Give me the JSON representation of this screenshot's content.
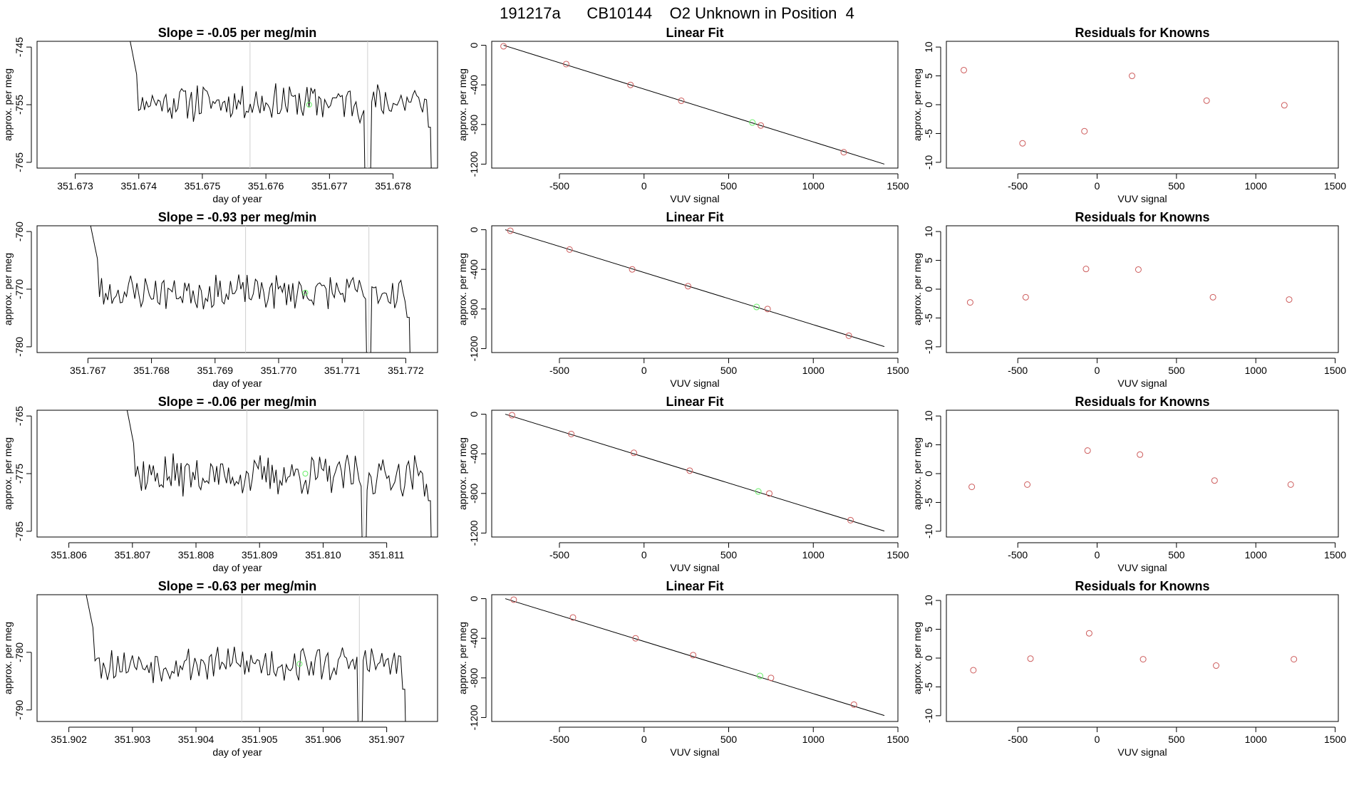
{
  "page_title": "191217a      CB10144    O2 Unknown in Position  4",
  "colors": {
    "point": "#cd5c5c",
    "highlight": "#66ee66",
    "line": "#000000",
    "vline": "#cfcfcf"
  },
  "chart_data": [
    {
      "type": "line",
      "row": 0,
      "col": 0,
      "title": "Slope =  -0.05  per meg/min",
      "xlabel": "day of year",
      "ylabel": "approx. per meg",
      "xlim": [
        351.6724,
        351.6787
      ],
      "ylim": [
        -766,
        -744
      ],
      "xticks": [
        351.673,
        351.674,
        351.675,
        351.676,
        351.677,
        351.678
      ],
      "xticklabels": [
        "351.673",
        "351.674",
        "351.675",
        "351.676",
        "351.677",
        "351.678"
      ],
      "yticks": [
        -745,
        -755,
        -765
      ],
      "yticklabels": [
        "-745",
        "-755",
        "-765"
      ],
      "vlines": [
        351.67575,
        351.6776
      ],
      "highlight": {
        "x": 351.67668,
        "y": -755.0
      },
      "trace": {
        "x_start": 351.67375,
        "x_end": 351.67865,
        "n": 160,
        "mean": -754.5,
        "amp": 2.8,
        "seed": 11
      }
    },
    {
      "type": "scatter",
      "row": 0,
      "col": 1,
      "title": "Linear Fit",
      "xlabel": "VUV signal",
      "ylabel": "approx. per meg",
      "xlim": [
        -900,
        1500
      ],
      "ylim": [
        -1240,
        40
      ],
      "xticks": [
        -500,
        0,
        500,
        1000,
        1500
      ],
      "xticklabels": [
        "-500",
        "0",
        "500",
        "1000",
        "1500"
      ],
      "yticks": [
        0,
        -400,
        -800,
        -1200
      ],
      "yticklabels": [
        "0",
        "-400",
        "-800",
        "-1200"
      ],
      "points": [
        [
          -830,
          -10
        ],
        [
          -460,
          -190
        ],
        [
          -80,
          -400
        ],
        [
          220,
          -560
        ],
        [
          690,
          -810
        ],
        [
          1180,
          -1080
        ]
      ],
      "highlight": [
        640,
        -780
      ],
      "fit_line": [
        [
          -830,
          0
        ],
        [
          1420,
          -1200
        ]
      ]
    },
    {
      "type": "scatter",
      "row": 0,
      "col": 2,
      "title": "Residuals for Knowns",
      "xlabel": "VUV signal",
      "ylabel": "approx. per meg",
      "xlim": [
        -950,
        1520
      ],
      "ylim": [
        -11,
        11
      ],
      "xticks": [
        -500,
        0,
        500,
        1000,
        1500
      ],
      "xticklabels": [
        "-500",
        "0",
        "500",
        "1000",
        "1500"
      ],
      "yticks": [
        10,
        5,
        0,
        -5,
        -10
      ],
      "yticklabels": [
        "10",
        "5",
        "0",
        "-5",
        "-10"
      ],
      "points": [
        [
          -840,
          6.0
        ],
        [
          -470,
          -6.7
        ],
        [
          -80,
          -4.6
        ],
        [
          220,
          5.0
        ],
        [
          690,
          0.7
        ],
        [
          1180,
          -0.1
        ]
      ]
    },
    {
      "type": "line",
      "row": 1,
      "col": 0,
      "title": "Slope =  -0.93  per meg/min",
      "xlabel": "day of year",
      "ylabel": "approx. per meg",
      "xlim": [
        351.7662,
        351.7725
      ],
      "ylim": [
        -781,
        -759
      ],
      "xticks": [
        351.767,
        351.768,
        351.769,
        351.77,
        351.771,
        351.772
      ],
      "xticklabels": [
        "351.767",
        "351.768",
        "351.769",
        "351.770",
        "351.771",
        "351.772"
      ],
      "yticks": [
        -760,
        -770,
        -780
      ],
      "yticklabels": [
        "-760",
        "-770",
        "-780"
      ],
      "vlines": [
        351.76948,
        351.77142
      ],
      "highlight": {
        "x": 351.77042,
        "y": -770.6
      },
      "trace": {
        "x_start": 351.76692,
        "x_end": 351.77212,
        "n": 160,
        "mean": -770.5,
        "amp": 2.6,
        "seed": 23
      }
    },
    {
      "type": "scatter",
      "row": 1,
      "col": 1,
      "title": "Linear Fit",
      "xlabel": "VUV signal",
      "ylabel": "approx. per meg",
      "xlim": [
        -900,
        1500
      ],
      "ylim": [
        -1240,
        40
      ],
      "xticks": [
        -500,
        0,
        500,
        1000,
        1500
      ],
      "xticklabels": [
        "-500",
        "0",
        "500",
        "1000",
        "1500"
      ],
      "yticks": [
        0,
        -400,
        -800,
        -1200
      ],
      "yticklabels": [
        "0",
        "-400",
        "-800",
        "-1200"
      ],
      "points": [
        [
          -790,
          -10
        ],
        [
          -440,
          -200
        ],
        [
          -70,
          -400
        ],
        [
          260,
          -570
        ],
        [
          730,
          -800
        ],
        [
          1210,
          -1070
        ]
      ],
      "highlight": [
        665,
        -780
      ],
      "fit_line": [
        [
          -820,
          0
        ],
        [
          1420,
          -1180
        ]
      ]
    },
    {
      "type": "scatter",
      "row": 1,
      "col": 2,
      "title": "Residuals for Knowns",
      "xlabel": "VUV signal",
      "ylabel": "approx. per meg",
      "xlim": [
        -950,
        1520
      ],
      "ylim": [
        -11,
        11
      ],
      "xticks": [
        -500,
        0,
        500,
        1000,
        1500
      ],
      "xticklabels": [
        "-500",
        "0",
        "500",
        "1000",
        "1500"
      ],
      "yticks": [
        10,
        5,
        0,
        -5,
        -10
      ],
      "yticklabels": [
        "10",
        "5",
        "0",
        "-5",
        "-10"
      ],
      "points": [
        [
          -800,
          -2.3
        ],
        [
          -450,
          -1.4
        ],
        [
          -70,
          3.5
        ],
        [
          260,
          3.4
        ],
        [
          730,
          -1.4
        ],
        [
          1210,
          -1.8
        ]
      ]
    },
    {
      "type": "line",
      "row": 2,
      "col": 0,
      "title": "Slope =  -0.06  per meg/min",
      "xlabel": "day of year",
      "ylabel": "approx. per meg",
      "xlim": [
        351.8055,
        351.8118
      ],
      "ylim": [
        -786,
        -764
      ],
      "xticks": [
        351.806,
        351.807,
        351.808,
        351.809,
        351.81,
        351.811
      ],
      "xticklabels": [
        "351.806",
        "351.807",
        "351.808",
        "351.809",
        "351.810",
        "351.811"
      ],
      "yticks": [
        -765,
        -775,
        -785
      ],
      "yticklabels": [
        "-765",
        "-775",
        "-785"
      ],
      "vlines": [
        351.8088,
        351.81064
      ],
      "highlight": {
        "x": 351.80972,
        "y": -775.0
      },
      "trace": {
        "x_start": 351.8068,
        "x_end": 351.81175,
        "n": 160,
        "mean": -775.3,
        "amp": 3.0,
        "seed": 37
      }
    },
    {
      "type": "scatter",
      "row": 2,
      "col": 1,
      "title": "Linear Fit",
      "xlabel": "VUV signal",
      "ylabel": "approx. per meg",
      "xlim": [
        -900,
        1500
      ],
      "ylim": [
        -1240,
        40
      ],
      "xticks": [
        -500,
        0,
        500,
        1000,
        1500
      ],
      "xticklabels": [
        "-500",
        "0",
        "500",
        "1000",
        "1500"
      ],
      "yticks": [
        0,
        -400,
        -800,
        -1200
      ],
      "yticklabels": [
        "0",
        "-400",
        "-800",
        "-1200"
      ],
      "points": [
        [
          -780,
          -10
        ],
        [
          -430,
          -200
        ],
        [
          -60,
          -390
        ],
        [
          270,
          -570
        ],
        [
          740,
          -800
        ],
        [
          1220,
          -1070
        ]
      ],
      "highlight": [
        675,
        -780
      ],
      "fit_line": [
        [
          -820,
          0
        ],
        [
          1420,
          -1180
        ]
      ]
    },
    {
      "type": "scatter",
      "row": 2,
      "col": 2,
      "title": "Residuals for Knowns",
      "xlabel": "VUV signal",
      "ylabel": "approx. per meg",
      "xlim": [
        -950,
        1520
      ],
      "ylim": [
        -11,
        11
      ],
      "xticks": [
        -500,
        0,
        500,
        1000,
        1500
      ],
      "xticklabels": [
        "-500",
        "0",
        "500",
        "1000",
        "1500"
      ],
      "yticks": [
        10,
        5,
        0,
        -5,
        -10
      ],
      "yticklabels": [
        "10",
        "5",
        "0",
        "-5",
        "-10"
      ],
      "points": [
        [
          -790,
          -2.3
        ],
        [
          -440,
          -1.9
        ],
        [
          -60,
          4.0
        ],
        [
          270,
          3.3
        ],
        [
          740,
          -1.2
        ],
        [
          1220,
          -1.9
        ]
      ]
    },
    {
      "type": "line",
      "row": 3,
      "col": 0,
      "title": "Slope =  -0.63  per meg/min",
      "xlabel": "day of year",
      "ylabel": "approx. per meg",
      "xlim": [
        351.9015,
        351.9078
      ],
      "ylim": [
        -792,
        -770
      ],
      "xticks": [
        351.902,
        351.903,
        351.904,
        351.905,
        351.906,
        351.907
      ],
      "xticklabels": [
        "351.902",
        "351.903",
        "351.904",
        "351.905",
        "351.906",
        "351.907"
      ],
      "yticks": [
        -780,
        -790
      ],
      "yticklabels": [
        "-780",
        "-790"
      ],
      "vlines": [
        351.90472,
        351.90657
      ],
      "highlight": {
        "x": 351.90563,
        "y": -782.0
      },
      "trace": {
        "x_start": 351.90215,
        "x_end": 351.90735,
        "n": 160,
        "mean": -782.0,
        "amp": 2.6,
        "seed": 53
      }
    },
    {
      "type": "scatter",
      "row": 3,
      "col": 1,
      "title": "Linear Fit",
      "xlabel": "VUV signal",
      "ylabel": "approx. per meg",
      "xlim": [
        -900,
        1500
      ],
      "ylim": [
        -1240,
        40
      ],
      "xticks": [
        -500,
        0,
        500,
        1000,
        1500
      ],
      "xticklabels": [
        "-500",
        "0",
        "500",
        "1000",
        "1500"
      ],
      "yticks": [
        0,
        -400,
        -800,
        -1200
      ],
      "yticklabels": [
        "0",
        "-400",
        "-800",
        "-1200"
      ],
      "points": [
        [
          -770,
          -10
        ],
        [
          -420,
          -190
        ],
        [
          -50,
          -400
        ],
        [
          290,
          -570
        ],
        [
          750,
          -800
        ],
        [
          1240,
          -1070
        ]
      ],
      "highlight": [
        685,
        -780
      ],
      "fit_line": [
        [
          -820,
          0
        ],
        [
          1420,
          -1180
        ]
      ]
    },
    {
      "type": "scatter",
      "row": 3,
      "col": 2,
      "title": "Residuals for Knowns",
      "xlabel": "VUV signal",
      "ylabel": "approx. per meg",
      "xlim": [
        -950,
        1520
      ],
      "ylim": [
        -11,
        11
      ],
      "xticks": [
        -500,
        0,
        500,
        1000,
        1500
      ],
      "xticklabels": [
        "-500",
        "0",
        "500",
        "1000",
        "1500"
      ],
      "yticks": [
        10,
        5,
        0,
        -5,
        -10
      ],
      "yticklabels": [
        "10",
        "5",
        "0",
        "-5",
        "-10"
      ],
      "points": [
        [
          -780,
          -2.1
        ],
        [
          -420,
          -0.1
        ],
        [
          -50,
          4.3
        ],
        [
          290,
          -0.2
        ],
        [
          750,
          -1.3
        ],
        [
          1240,
          -0.2
        ]
      ]
    }
  ]
}
